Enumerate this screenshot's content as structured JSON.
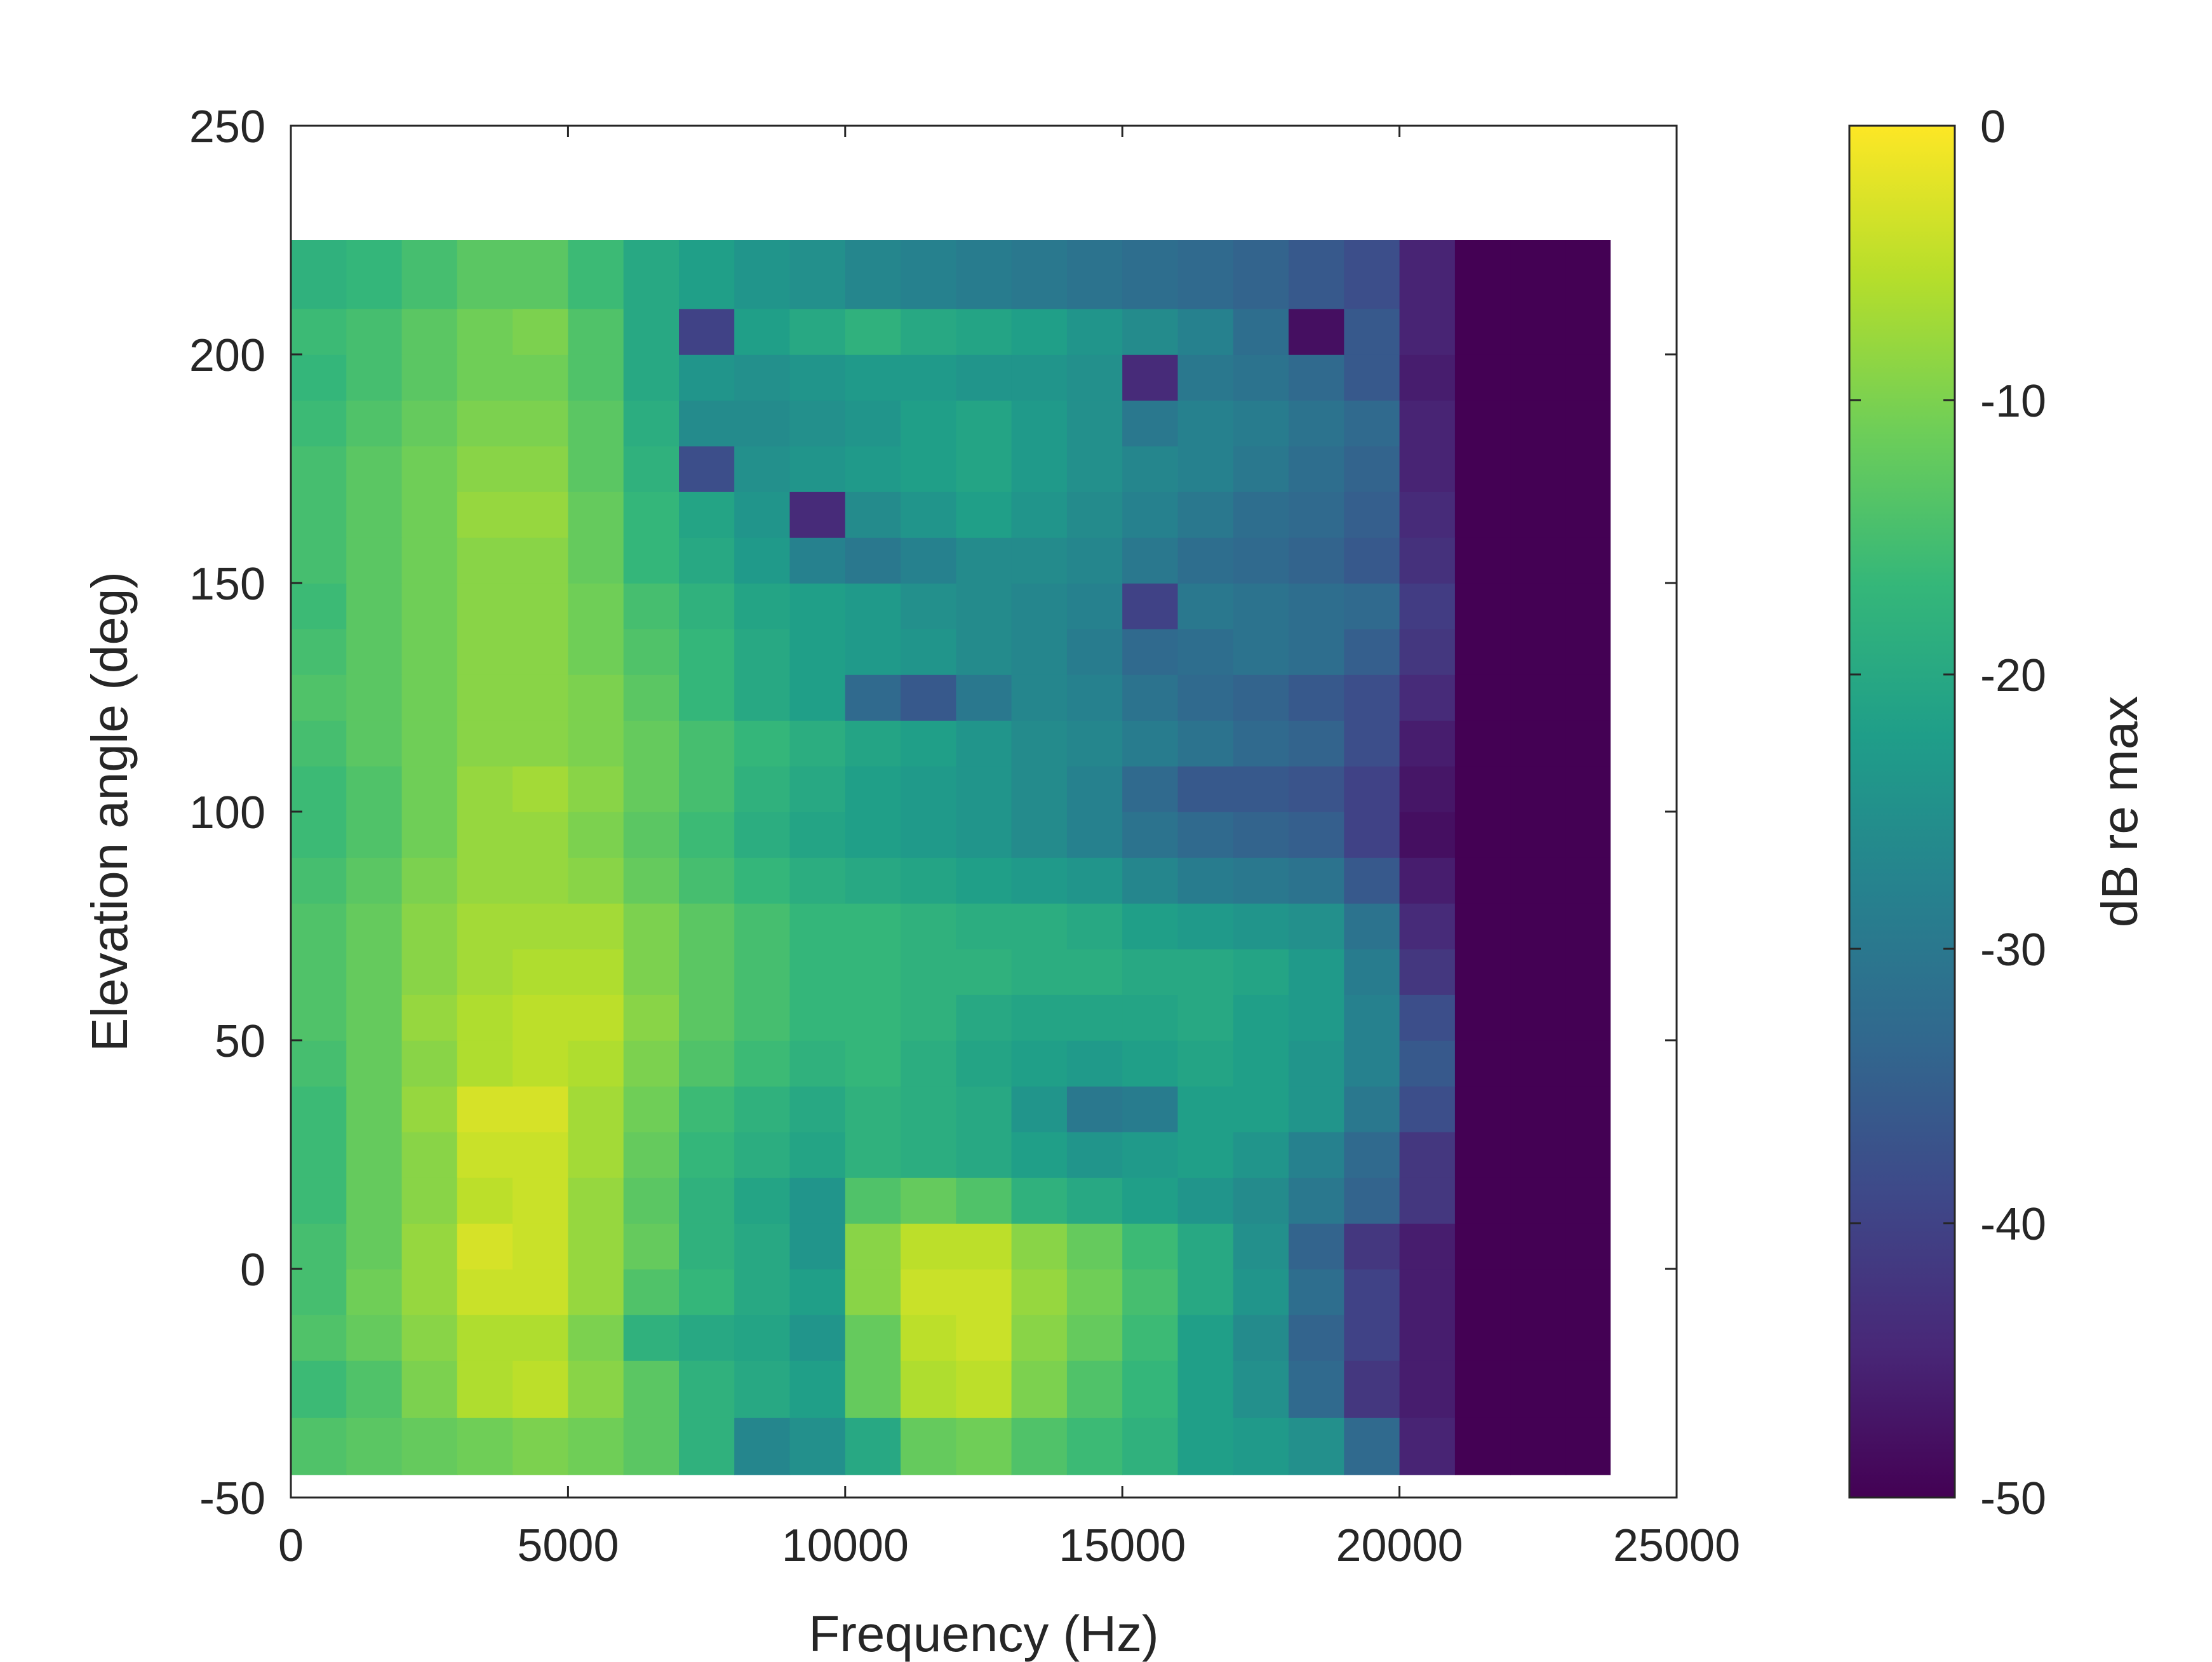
{
  "chart_data": {
    "type": "heatmap",
    "title": "",
    "xlabel": "Frequency (Hz)",
    "ylabel": "Elevation angle (deg)",
    "xlim": [
      0,
      25000
    ],
    "ylim": [
      -50,
      250
    ],
    "xticks": [
      0,
      5000,
      10000,
      15000,
      20000,
      25000
    ],
    "xtick_labels": [
      "0",
      "5000",
      "10000",
      "15000",
      "20000",
      "25000"
    ],
    "yticks": [
      -50,
      0,
      50,
      100,
      150,
      200,
      250
    ],
    "ytick_labels": [
      "-50",
      "0",
      "50",
      "100",
      "150",
      "200",
      "250"
    ],
    "grid": false,
    "data_extent": {
      "x": [
        0,
        23800
      ],
      "y": [
        -45,
        225
      ]
    },
    "colormap": "viridis",
    "colormap_stops": [
      "#440154",
      "#482878",
      "#3e4989",
      "#31688e",
      "#26828e",
      "#1f9e89",
      "#35b779",
      "#6ece58",
      "#b5de2b",
      "#fde725"
    ],
    "colorbar": {
      "label": "dB re max",
      "range": [
        -50,
        0
      ],
      "ticks": [
        0,
        -10,
        -20,
        -30,
        -40,
        -50
      ],
      "tick_labels": [
        "0",
        "-10",
        "-20",
        "-30",
        "-40",
        "-50"
      ]
    },
    "elevations": [
      -40,
      -25,
      -15,
      -5,
      5,
      15,
      25,
      35,
      45,
      55,
      65,
      75,
      85,
      95,
      105,
      115,
      125,
      135,
      145,
      155,
      165,
      175,
      185,
      195,
      205,
      215
    ],
    "frequency_bins": [
      0,
      1000,
      2000,
      3000,
      4000,
      5000,
      6000,
      7000,
      8000,
      9000,
      10000,
      11000,
      12000,
      13000,
      14000,
      15000,
      16000,
      17000,
      18000,
      19000,
      20000,
      21000,
      22000,
      23000
    ],
    "values_db": [
      [
        -14,
        -13,
        -12,
        -11,
        -10,
        -11,
        -13,
        -18,
        -27,
        -25,
        -20,
        -12,
        -11,
        -14,
        -16,
        -18,
        -22,
        -23,
        -25,
        -33,
        -45,
        -50,
        -50,
        -50
      ],
      [
        -16,
        -14,
        -10,
        -6,
        -5,
        -9,
        -13,
        -18,
        -20,
        -22,
        -12,
        -6,
        -5,
        -10,
        -14,
        -17,
        -22,
        -25,
        -33,
        -42,
        -46,
        -50,
        -50,
        -50
      ],
      [
        -14,
        -12,
        -9,
        -6,
        -6,
        -10,
        -18,
        -20,
        -21,
        -24,
        -12,
        -5,
        -4,
        -9,
        -12,
        -16,
        -22,
        -26,
        -34,
        -40,
        -46,
        -50,
        -50,
        -50
      ],
      [
        -15,
        -11,
        -8,
        -4,
        -4,
        -8,
        -14,
        -17,
        -20,
        -22,
        -9,
        -4,
        -4,
        -8,
        -11,
        -15,
        -20,
        -24,
        -32,
        -40,
        -46,
        -50,
        -50,
        -50
      ],
      [
        -15,
        -12,
        -8,
        -3,
        -4,
        -8,
        -12,
        -18,
        -20,
        -24,
        -9,
        -5,
        -5,
        -9,
        -12,
        -16,
        -20,
        -25,
        -34,
        -42,
        -46,
        -50,
        -50,
        -50
      ],
      [
        -16,
        -12,
        -9,
        -5,
        -4,
        -8,
        -13,
        -18,
        -21,
        -24,
        -14,
        -12,
        -14,
        -18,
        -20,
        -22,
        -24,
        -26,
        -30,
        -34,
        -42,
        -50,
        -50,
        -50
      ],
      [
        -16,
        -12,
        -9,
        -4,
        -4,
        -7,
        -12,
        -17,
        -19,
        -21,
        -18,
        -19,
        -20,
        -22,
        -24,
        -23,
        -22,
        -24,
        -28,
        -33,
        -42,
        -50,
        -50,
        -50
      ],
      [
        -16,
        -12,
        -8,
        -3,
        -3,
        -7,
        -11,
        -16,
        -18,
        -20,
        -18,
        -19,
        -20,
        -24,
        -30,
        -29,
        -22,
        -22,
        -24,
        -30,
        -38,
        -50,
        -50,
        -50
      ],
      [
        -15,
        -12,
        -9,
        -6,
        -5,
        -6,
        -10,
        -14,
        -16,
        -18,
        -17,
        -19,
        -21,
        -22,
        -23,
        -22,
        -21,
        -22,
        -24,
        -28,
        -36,
        -50,
        -50,
        -50
      ],
      [
        -14,
        -12,
        -8,
        -6,
        -5,
        -5,
        -9,
        -13,
        -15,
        -17,
        -17,
        -18,
        -20,
        -21,
        -21,
        -21,
        -20,
        -22,
        -23,
        -28,
        -38,
        -50,
        -50,
        -50
      ],
      [
        -14,
        -12,
        -9,
        -7,
        -6,
        -6,
        -10,
        -13,
        -15,
        -17,
        -17,
        -18,
        -18,
        -19,
        -19,
        -20,
        -20,
        -21,
        -23,
        -29,
        -42,
        -50,
        -50,
        -50
      ],
      [
        -14,
        -12,
        -9,
        -7,
        -7,
        -7,
        -10,
        -13,
        -15,
        -17,
        -17,
        -18,
        -19,
        -19,
        -20,
        -22,
        -23,
        -24,
        -25,
        -31,
        -44,
        -50,
        -50,
        -50
      ],
      [
        -15,
        -13,
        -10,
        -8,
        -8,
        -9,
        -12,
        -15,
        -17,
        -19,
        -20,
        -21,
        -22,
        -23,
        -24,
        -27,
        -29,
        -30,
        -31,
        -36,
        -46,
        -50,
        -50,
        -50
      ],
      [
        -16,
        -14,
        -11,
        -8,
        -8,
        -10,
        -13,
        -16,
        -19,
        -21,
        -22,
        -23,
        -24,
        -26,
        -28,
        -31,
        -33,
        -34,
        -35,
        -40,
        -48,
        -50,
        -50,
        -50
      ],
      [
        -16,
        -14,
        -11,
        -8,
        -7,
        -9,
        -12,
        -15,
        -18,
        -20,
        -22,
        -23,
        -24,
        -26,
        -28,
        -33,
        -36,
        -36,
        -37,
        -40,
        -47,
        -50,
        -50,
        -50
      ],
      [
        -15,
        -13,
        -11,
        -9,
        -9,
        -10,
        -12,
        -15,
        -17,
        -19,
        -21,
        -22,
        -24,
        -26,
        -27,
        -29,
        -31,
        -33,
        -34,
        -38,
        -46,
        -50,
        -50,
        -50
      ],
      [
        -14,
        -13,
        -11,
        -9,
        -9,
        -10,
        -13,
        -17,
        -20,
        -22,
        -33,
        -36,
        -30,
        -27,
        -28,
        -31,
        -33,
        -34,
        -36,
        -38,
        -44,
        -50,
        -50,
        -50
      ],
      [
        -15,
        -13,
        -11,
        -9,
        -9,
        -11,
        -14,
        -17,
        -20,
        -22,
        -23,
        -24,
        -26,
        -27,
        -29,
        -33,
        -32,
        -31,
        -32,
        -35,
        -42,
        -50,
        -50,
        -50
      ],
      [
        -16,
        -13,
        -11,
        -9,
        -9,
        -11,
        -15,
        -18,
        -21,
        -22,
        -23,
        -25,
        -26,
        -27,
        -28,
        -40,
        -30,
        -31,
        -32,
        -33,
        -41,
        -50,
        -50,
        -50
      ],
      [
        -15,
        -13,
        -11,
        -9,
        -9,
        -12,
        -17,
        -20,
        -23,
        -28,
        -30,
        -28,
        -26,
        -26,
        -27,
        -30,
        -32,
        -33,
        -34,
        -36,
        -43,
        -50,
        -50,
        -50
      ],
      [
        -15,
        -13,
        -11,
        -8,
        -8,
        -12,
        -17,
        -21,
        -24,
        -44,
        -26,
        -24,
        -22,
        -24,
        -26,
        -28,
        -30,
        -32,
        -33,
        -35,
        -44,
        -50,
        -50,
        -50
      ],
      [
        -15,
        -13,
        -11,
        -9,
        -9,
        -13,
        -18,
        -38,
        -25,
        -24,
        -23,
        -22,
        -21,
        -23,
        -25,
        -27,
        -28,
        -30,
        -32,
        -34,
        -45,
        -50,
        -50,
        -50
      ],
      [
        -16,
        -14,
        -12,
        -10,
        -10,
        -13,
        -19,
        -26,
        -26,
        -25,
        -24,
        -22,
        -21,
        -23,
        -25,
        -30,
        -28,
        -29,
        -31,
        -33,
        -45,
        -50,
        -50,
        -50
      ],
      [
        -17,
        -15,
        -13,
        -11,
        -11,
        -14,
        -20,
        -24,
        -25,
        -24,
        -23,
        -23,
        -24,
        -24,
        -25,
        -44,
        -30,
        -31,
        -33,
        -36,
        -46,
        -50,
        -50,
        -50
      ],
      [
        -16,
        -15,
        -13,
        -11,
        -10,
        -14,
        -20,
        -40,
        -22,
        -20,
        -18,
        -20,
        -21,
        -22,
        -24,
        -26,
        -28,
        -32,
        -48,
        -36,
        -45,
        -50,
        -50,
        -50
      ],
      [
        -18,
        -17,
        -15,
        -13,
        -13,
        -16,
        -20,
        -22,
        -24,
        -25,
        -27,
        -28,
        -29,
        -30,
        -31,
        -32,
        -33,
        -34,
        -36,
        -38,
        -45,
        -50,
        -50,
        -50
      ]
    ]
  }
}
